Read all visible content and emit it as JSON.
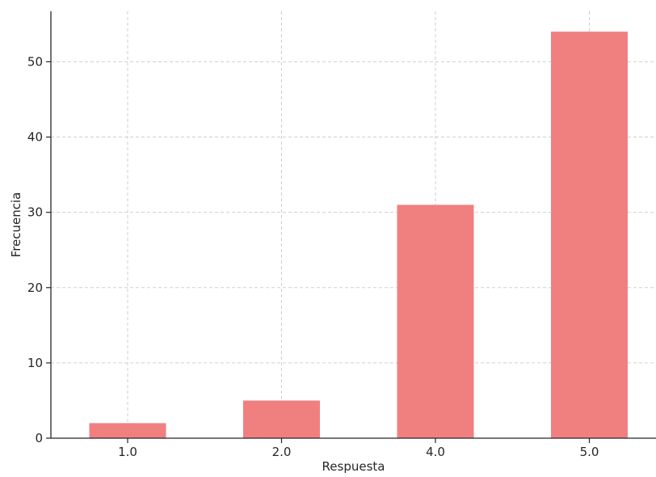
{
  "chart_data": {
    "type": "bar",
    "categories": [
      "1.0",
      "2.0",
      "4.0",
      "5.0"
    ],
    "values": [
      2,
      5,
      31,
      54
    ],
    "title": "",
    "xlabel": "Respuesta",
    "ylabel": "Frecuencia",
    "ylim": [
      0,
      56.7
    ],
    "yticks": [
      0,
      10,
      20,
      30,
      40,
      50
    ],
    "grid": true,
    "legend": null,
    "bar_color": "#f08080"
  }
}
